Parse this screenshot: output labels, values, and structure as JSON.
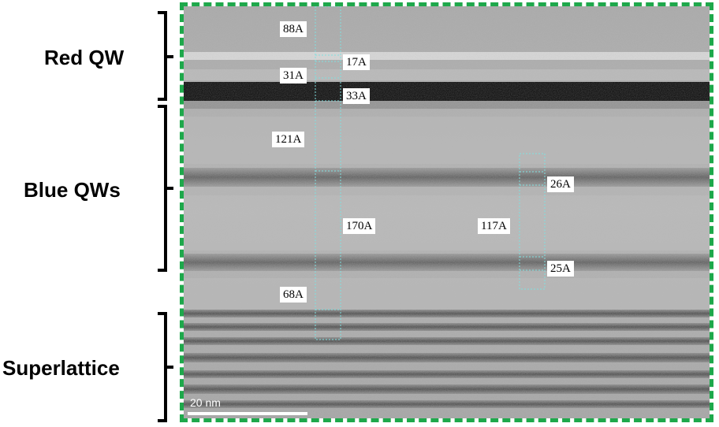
{
  "layers": {
    "red_qw": "Red QW",
    "blue_qws": "Blue QWs",
    "superlattice": "Superlattice"
  },
  "measurements": {
    "m88": "88A",
    "m17": "17A",
    "m31": "31A",
    "m33": "33A",
    "m121": "121A",
    "m170": "170A",
    "m68": "68A",
    "m26": "26A",
    "m117": "117A",
    "m25": "25A"
  },
  "scale_bar": {
    "label": "20 nm"
  },
  "colors": {
    "frame": "#1ea84b",
    "guide_box": "#7fe0e0"
  }
}
